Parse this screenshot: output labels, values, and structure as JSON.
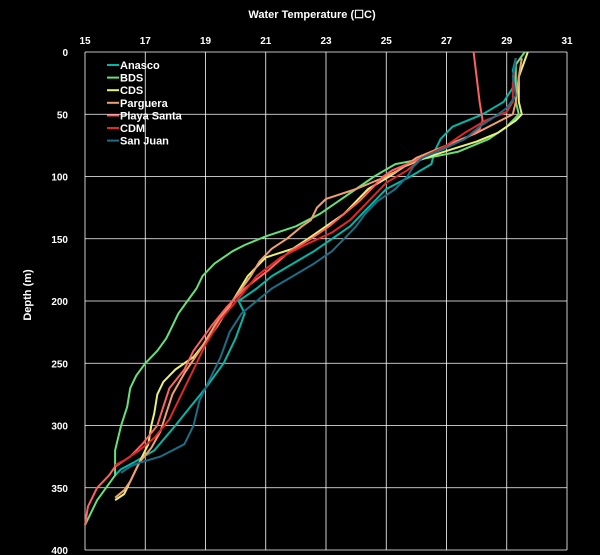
{
  "chart_data": {
    "type": "line",
    "title": "Water Temperature (☐C)",
    "xlabel": "Water Temperature (☐C)",
    "ylabel": "Depth (m)",
    "xlim": [
      15,
      31
    ],
    "ylim": [
      0,
      400
    ],
    "y_inverted": true,
    "x_axis_position": "top",
    "xticks": [
      15,
      17,
      19,
      21,
      23,
      25,
      27,
      29,
      31
    ],
    "yticks": [
      0,
      50,
      100,
      150,
      200,
      250,
      300,
      350,
      400
    ],
    "grid": true,
    "background": "#000000",
    "grid_color": "#ffffff",
    "legend": {
      "placement": "top-left"
    },
    "series": [
      {
        "name": "Anasco",
        "color": "#00b8a8",
        "points": [
          [
            29.3,
            5
          ],
          [
            29.2,
            15
          ],
          [
            29.3,
            25
          ],
          [
            28.9,
            40
          ],
          [
            28.2,
            50
          ],
          [
            27.2,
            60
          ],
          [
            26.8,
            70
          ],
          [
            26.6,
            80
          ],
          [
            26.5,
            90
          ],
          [
            25.8,
            100
          ],
          [
            25.0,
            110
          ],
          [
            24.6,
            120
          ],
          [
            24.2,
            130
          ],
          [
            23.8,
            140
          ],
          [
            23.2,
            150
          ],
          [
            22.6,
            160
          ],
          [
            21.9,
            170
          ],
          [
            21.2,
            180
          ],
          [
            20.7,
            190
          ],
          [
            20.1,
            200
          ],
          [
            20.3,
            210
          ],
          [
            20.0,
            230
          ],
          [
            19.6,
            250
          ],
          [
            19.0,
            270
          ],
          [
            18.5,
            285
          ],
          [
            18.0,
            300
          ],
          [
            17.3,
            320
          ],
          [
            16.6,
            330
          ],
          [
            16.2,
            335
          ],
          [
            16.0,
            340
          ]
        ]
      },
      {
        "name": "BDS",
        "color": "#66e07a",
        "points": [
          [
            29.6,
            0
          ],
          [
            29.3,
            10
          ],
          [
            29.3,
            40
          ],
          [
            29.4,
            50
          ],
          [
            29.0,
            60
          ],
          [
            28.4,
            70
          ],
          [
            27.4,
            80
          ],
          [
            26.4,
            85
          ],
          [
            25.3,
            90
          ],
          [
            24.6,
            100
          ],
          [
            24.0,
            110
          ],
          [
            23.4,
            120
          ],
          [
            22.8,
            130
          ],
          [
            22.0,
            140
          ],
          [
            21.0,
            148
          ],
          [
            20.3,
            155
          ],
          [
            19.9,
            160
          ],
          [
            19.3,
            170
          ],
          [
            18.9,
            180
          ],
          [
            18.7,
            190
          ],
          [
            18.4,
            200
          ],
          [
            18.1,
            210
          ],
          [
            17.9,
            220
          ],
          [
            17.7,
            230
          ],
          [
            17.4,
            240
          ],
          [
            17.0,
            250
          ],
          [
            16.7,
            260
          ],
          [
            16.5,
            270
          ],
          [
            16.4,
            285
          ],
          [
            16.2,
            300
          ],
          [
            16.0,
            320
          ],
          [
            16.0,
            340
          ],
          [
            15.4,
            360
          ],
          [
            15.0,
            380
          ]
        ]
      },
      {
        "name": "CDS",
        "color": "#e8f07a",
        "points": [
          [
            29.7,
            0
          ],
          [
            29.4,
            20
          ],
          [
            29.4,
            40
          ],
          [
            29.5,
            50
          ],
          [
            29.3,
            55
          ],
          [
            28.7,
            65
          ],
          [
            28.0,
            72
          ],
          [
            27.2,
            78
          ],
          [
            26.3,
            85
          ],
          [
            25.6,
            92
          ],
          [
            25.1,
            100
          ],
          [
            24.4,
            110
          ],
          [
            24.0,
            120
          ],
          [
            23.6,
            130
          ],
          [
            23.0,
            140
          ],
          [
            22.4,
            150
          ],
          [
            21.9,
            158
          ],
          [
            21.0,
            165
          ],
          [
            20.4,
            180
          ],
          [
            19.9,
            200
          ],
          [
            19.4,
            220
          ],
          [
            19.1,
            230
          ],
          [
            18.6,
            245
          ],
          [
            18.0,
            255
          ],
          [
            17.6,
            265
          ],
          [
            17.4,
            275
          ],
          [
            17.3,
            290
          ],
          [
            17.2,
            300
          ],
          [
            17.1,
            315
          ],
          [
            16.9,
            325
          ],
          [
            16.7,
            335
          ],
          [
            16.5,
            345
          ],
          [
            16.3,
            355
          ],
          [
            16.0,
            360
          ]
        ]
      },
      {
        "name": "Parguera",
        "color": "#f0a070",
        "points": [
          [
            29.5,
            5
          ],
          [
            29.4,
            20
          ],
          [
            29.3,
            40
          ],
          [
            29.2,
            50
          ],
          [
            28.8,
            55
          ],
          [
            28.0,
            65
          ],
          [
            27.0,
            75
          ],
          [
            26.0,
            85
          ],
          [
            25.4,
            95
          ],
          [
            24.8,
            102
          ],
          [
            24.0,
            110
          ],
          [
            23.0,
            118
          ],
          [
            22.7,
            125
          ],
          [
            22.5,
            135
          ],
          [
            22.2,
            140
          ],
          [
            21.7,
            150
          ],
          [
            21.2,
            158
          ],
          [
            20.8,
            168
          ],
          [
            20.5,
            180
          ],
          [
            19.9,
            200
          ],
          [
            19.3,
            220
          ],
          [
            18.8,
            240
          ],
          [
            18.3,
            258
          ],
          [
            17.9,
            275
          ],
          [
            17.7,
            290
          ],
          [
            17.5,
            305
          ],
          [
            17.2,
            318
          ],
          [
            16.8,
            330
          ],
          [
            16.5,
            345
          ],
          [
            16.3,
            352
          ],
          [
            16.0,
            358
          ]
        ]
      },
      {
        "name": "Playa Santa",
        "color": "#ff6060",
        "points": [
          [
            27.9,
            0
          ],
          [
            28.0,
            20
          ],
          [
            28.1,
            40
          ],
          [
            28.2,
            55
          ],
          [
            28.1,
            62
          ],
          [
            27.6,
            70
          ],
          [
            26.6,
            80
          ],
          [
            25.9,
            88
          ],
          [
            25.2,
            95
          ],
          [
            24.9,
            100
          ],
          [
            24.5,
            110
          ],
          [
            24.1,
            120
          ],
          [
            23.6,
            130
          ],
          [
            23.1,
            140
          ],
          [
            22.5,
            150
          ],
          [
            21.8,
            160
          ],
          [
            21.1,
            175
          ],
          [
            20.3,
            190
          ],
          [
            19.7,
            205
          ],
          [
            19.2,
            220
          ],
          [
            18.6,
            240
          ],
          [
            18.3,
            255
          ],
          [
            17.8,
            270
          ],
          [
            17.6,
            285
          ],
          [
            17.4,
            300
          ],
          [
            16.9,
            315
          ],
          [
            16.5,
            325
          ],
          [
            16.0,
            333
          ],
          [
            15.8,
            340
          ],
          [
            15.4,
            350
          ],
          [
            15.1,
            365
          ],
          [
            15.0,
            380
          ]
        ]
      },
      {
        "name": "CDM",
        "color": "#e02828",
        "points": [
          [
            29.3,
            5
          ],
          [
            29.2,
            25
          ],
          [
            29.2,
            40
          ],
          [
            29.0,
            48
          ],
          [
            28.3,
            55
          ],
          [
            27.6,
            65
          ],
          [
            27.0,
            75
          ],
          [
            26.2,
            85
          ],
          [
            25.7,
            95
          ],
          [
            25.0,
            105
          ],
          [
            24.4,
            120
          ],
          [
            23.8,
            135
          ],
          [
            23.2,
            145
          ],
          [
            22.3,
            155
          ],
          [
            21.5,
            165
          ],
          [
            20.7,
            180
          ],
          [
            20.2,
            195
          ],
          [
            19.5,
            215
          ],
          [
            19.0,
            235
          ],
          [
            18.6,
            255
          ],
          [
            18.2,
            275
          ],
          [
            17.8,
            295
          ],
          [
            17.3,
            310
          ],
          [
            16.8,
            320
          ],
          [
            16.3,
            328
          ],
          [
            16.0,
            332
          ]
        ]
      },
      {
        "name": "San Juan",
        "color": "#1a6e86",
        "points": [
          [
            29.3,
            5
          ],
          [
            29.2,
            20
          ],
          [
            29.3,
            35
          ],
          [
            29.0,
            45
          ],
          [
            28.6,
            52
          ],
          [
            28.1,
            60
          ],
          [
            27.6,
            70
          ],
          [
            26.9,
            78
          ],
          [
            26.2,
            85
          ],
          [
            25.9,
            92
          ],
          [
            25.7,
            100
          ],
          [
            25.3,
            110
          ],
          [
            24.7,
            120
          ],
          [
            24.3,
            130
          ],
          [
            24.0,
            140
          ],
          [
            23.6,
            150
          ],
          [
            23.2,
            160
          ],
          [
            22.6,
            170
          ],
          [
            21.9,
            180
          ],
          [
            21.2,
            190
          ],
          [
            20.7,
            200
          ],
          [
            20.2,
            210
          ],
          [
            19.8,
            225
          ],
          [
            19.5,
            245
          ],
          [
            19.1,
            265
          ],
          [
            18.8,
            280
          ],
          [
            18.6,
            300
          ],
          [
            18.3,
            315
          ],
          [
            17.5,
            325
          ],
          [
            16.8,
            330
          ],
          [
            16.5,
            333
          ],
          [
            16.2,
            338
          ]
        ]
      }
    ]
  }
}
